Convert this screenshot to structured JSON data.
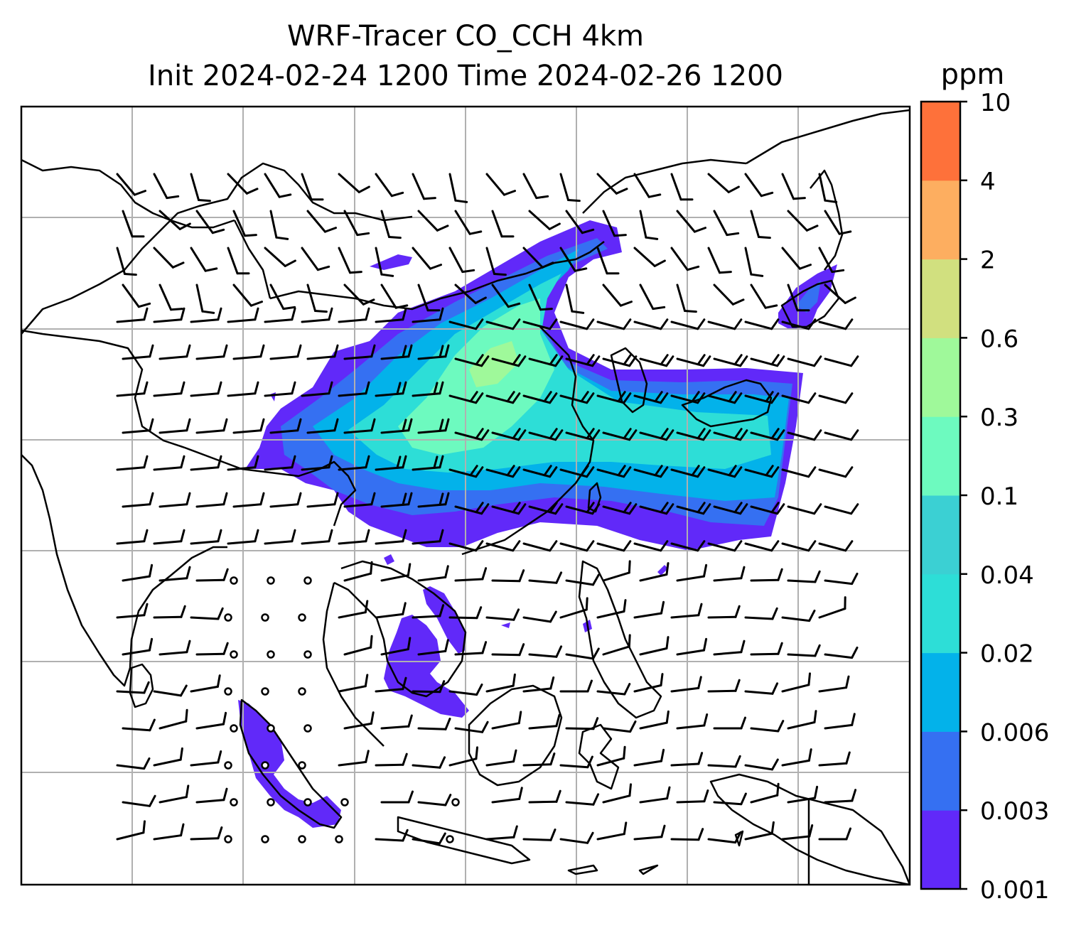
{
  "title": {
    "line1": "WRF-Tracer CO_CCH 4km",
    "line2": "Init 2024-02-24 1200 Time 2024-02-26 1200"
  },
  "colorbar": {
    "unit": "ppm",
    "levels": [
      "0.001",
      "0.003",
      "0.006",
      "0.02",
      "0.04",
      "0.1",
      "0.3",
      "0.6",
      "2",
      "4",
      "10"
    ],
    "colors": [
      "#6129f9",
      "#3570f2",
      "#03b2ea",
      "#2dded7",
      "#3bd0d3",
      "#6dfabf",
      "#9ff99a",
      "#d1e07f",
      "#fdae60",
      "#fe713a",
      "#ff2c17"
    ]
  },
  "map": {
    "gridline_color": "#b0b0b0",
    "coastline_color": "#000000",
    "wind_barb_color": "#000000"
  }
}
